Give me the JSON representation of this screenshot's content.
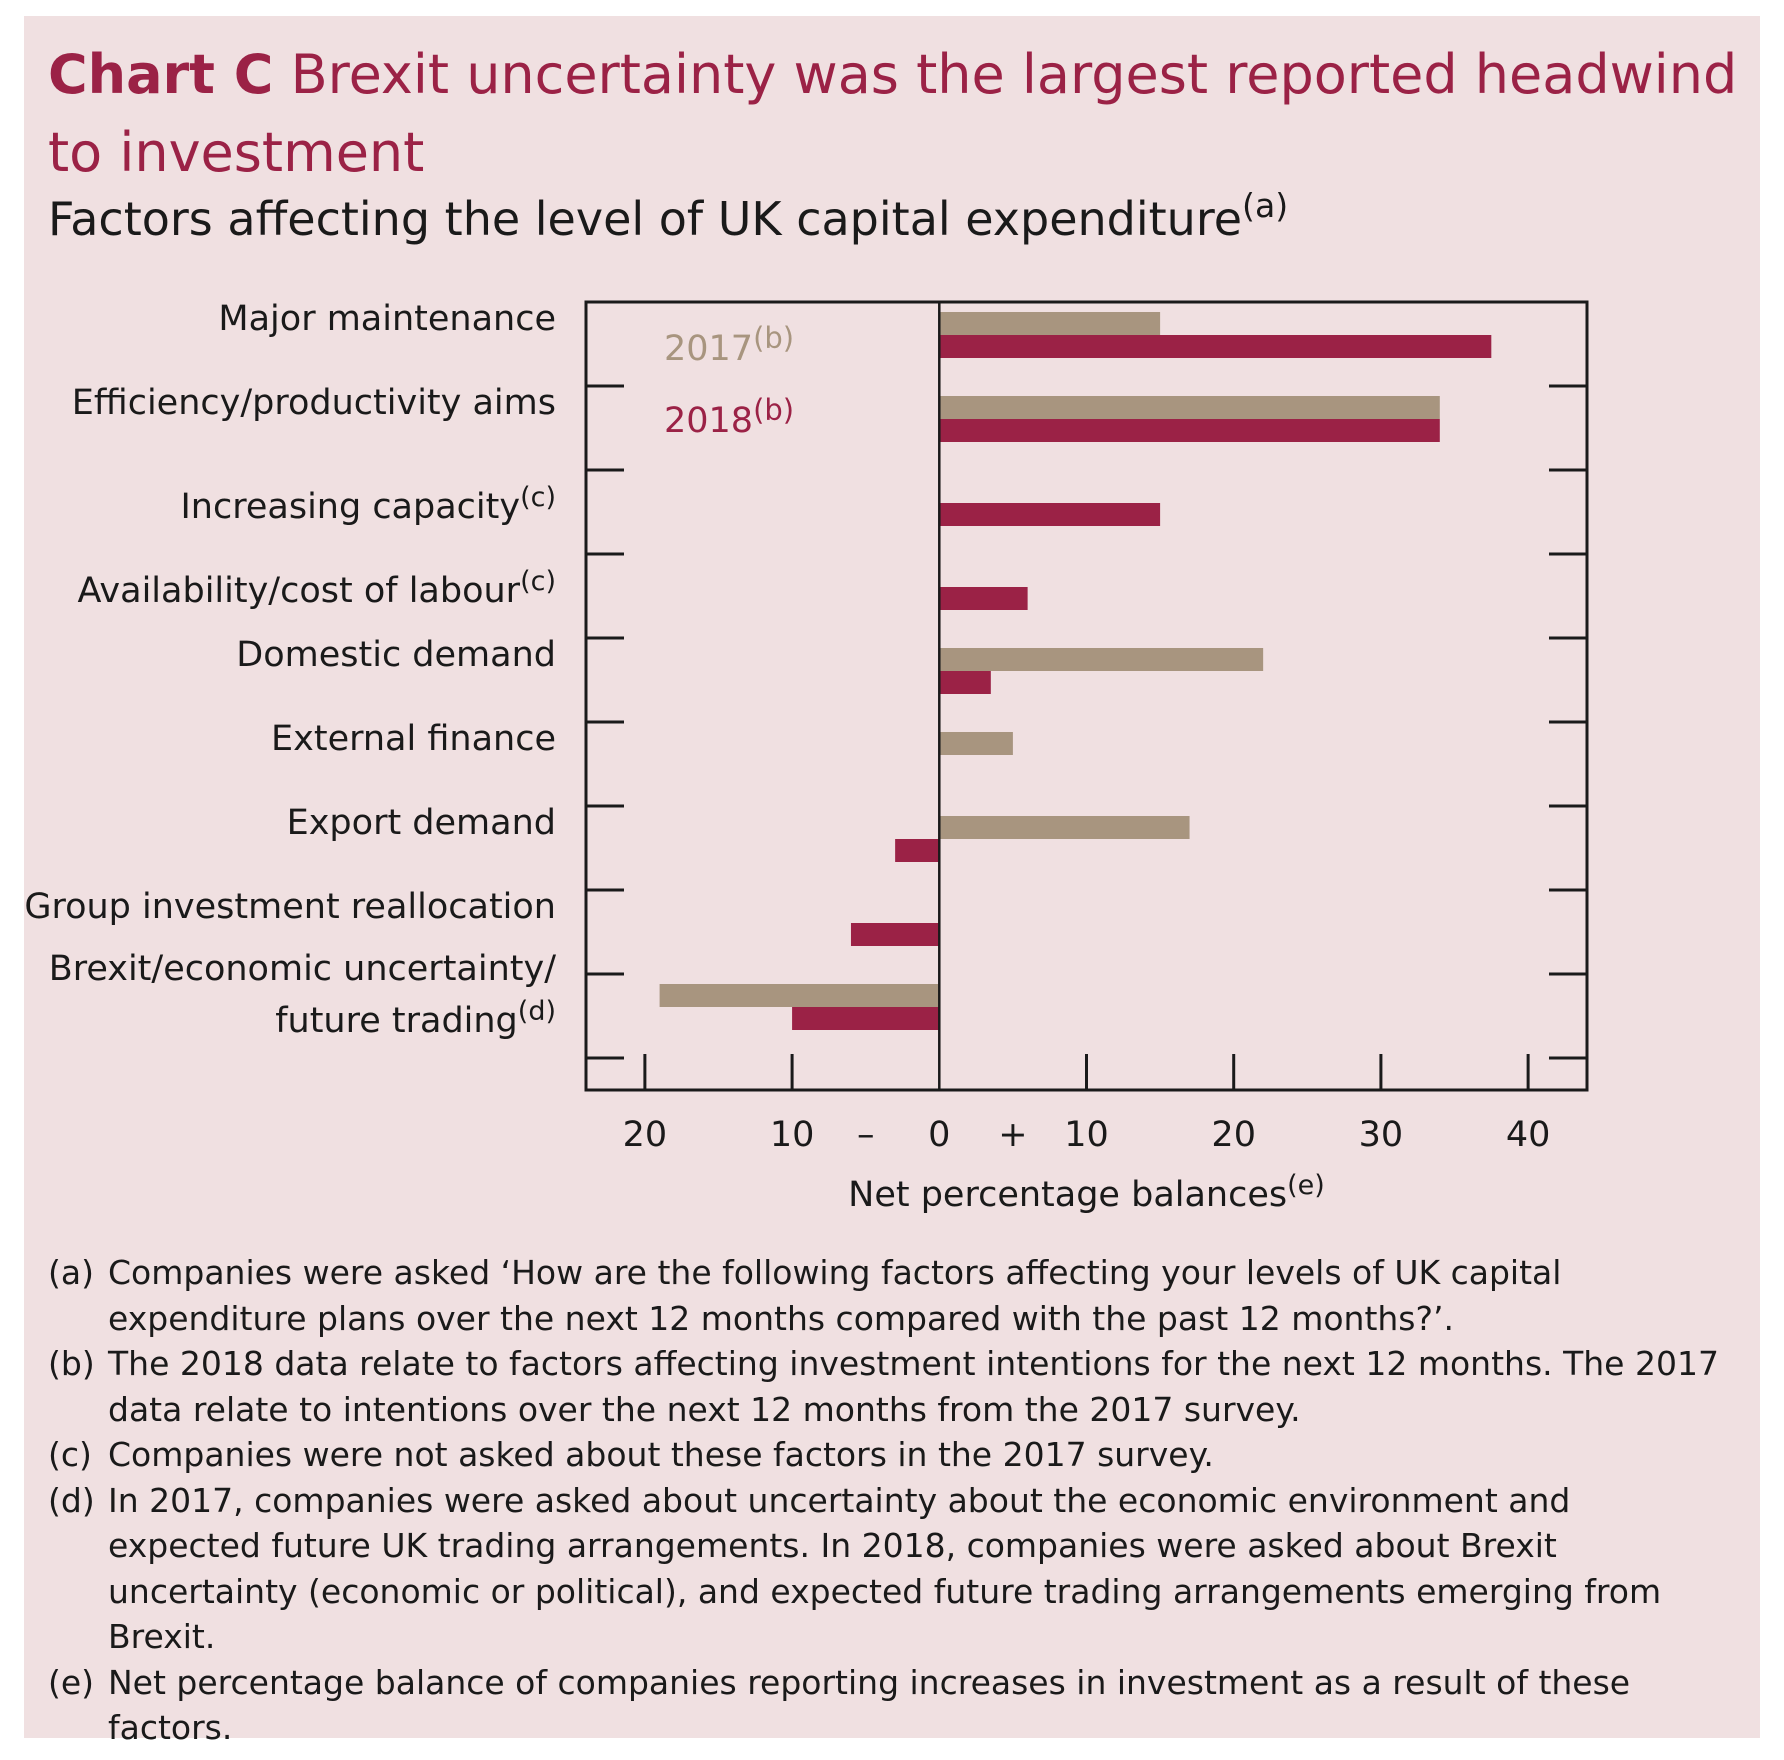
{
  "header": {
    "chart_label": "Chart C",
    "title": "Brexit uncertainty was the largest reported headwind to investment",
    "subtitle": "Factors affecting the level of UK capital expenditure",
    "subtitle_note": "(a)"
  },
  "colors": {
    "background": "#f0e0e1",
    "accent": "#9b2246",
    "series_2017": "#a8957f",
    "series_2018": "#9b2246",
    "text": "#1a1a1a"
  },
  "chart_data": {
    "type": "bar",
    "orientation": "horizontal",
    "categories": [
      {
        "label": "Major maintenance",
        "note": ""
      },
      {
        "label": "Efficiency/productivity aims",
        "note": ""
      },
      {
        "label": "Increasing capacity",
        "note": "(c)"
      },
      {
        "label": "Availability/cost of labour",
        "note": "(c)"
      },
      {
        "label": "Domestic demand",
        "note": ""
      },
      {
        "label": "External finance",
        "note": ""
      },
      {
        "label": "Export demand",
        "note": ""
      },
      {
        "label": "Group investment reallocation",
        "note": ""
      },
      {
        "label": "Brexit/economic uncertainty/ future trading",
        "note": "(d)"
      }
    ],
    "series": [
      {
        "name": "2017",
        "note": "(b)",
        "color": "#a8957f",
        "values": [
          15,
          34,
          null,
          null,
          22,
          5,
          17,
          0,
          -19
        ]
      },
      {
        "name": "2018",
        "note": "(b)",
        "color": "#9b2246",
        "values": [
          37.5,
          34,
          15,
          6,
          3.5,
          0,
          -3,
          -6,
          -10
        ]
      }
    ],
    "xlim": [
      -24,
      44
    ],
    "xticks": [
      -20,
      -10,
      0,
      10,
      20,
      30,
      40
    ],
    "xtick_labels": [
      "20",
      "10",
      "0",
      "10",
      "20",
      "30",
      "40"
    ],
    "sign_labels": {
      "negative": "–",
      "positive": "+"
    },
    "xlabel": "Net percentage balances",
    "xlabel_note": "(e)",
    "legend_position": "top-left",
    "grid": false
  },
  "notes": [
    {
      "tag": "(a)",
      "text": "Companies were asked ‘How are the following factors affecting your levels of UK capital expenditure plans over the next 12 months compared with the past 12 months?’."
    },
    {
      "tag": "(b)",
      "text": "The 2018 data relate to factors affecting investment intentions for the next 12 months. The 2017 data relate to intentions over the next 12 months from the 2017 survey."
    },
    {
      "tag": "(c)",
      "text": "Companies were not asked about these factors in the 2017 survey."
    },
    {
      "tag": "(d)",
      "text": "In 2017, companies were asked about uncertainty about the economic environment and expected future UK trading arrangements. In 2018, companies were asked about Brexit uncertainty (economic or political), and expected future trading arrangements emerging from Brexit."
    },
    {
      "tag": "(e)",
      "text": "Net percentage balance of companies reporting increases in investment as a result of these factors."
    }
  ]
}
